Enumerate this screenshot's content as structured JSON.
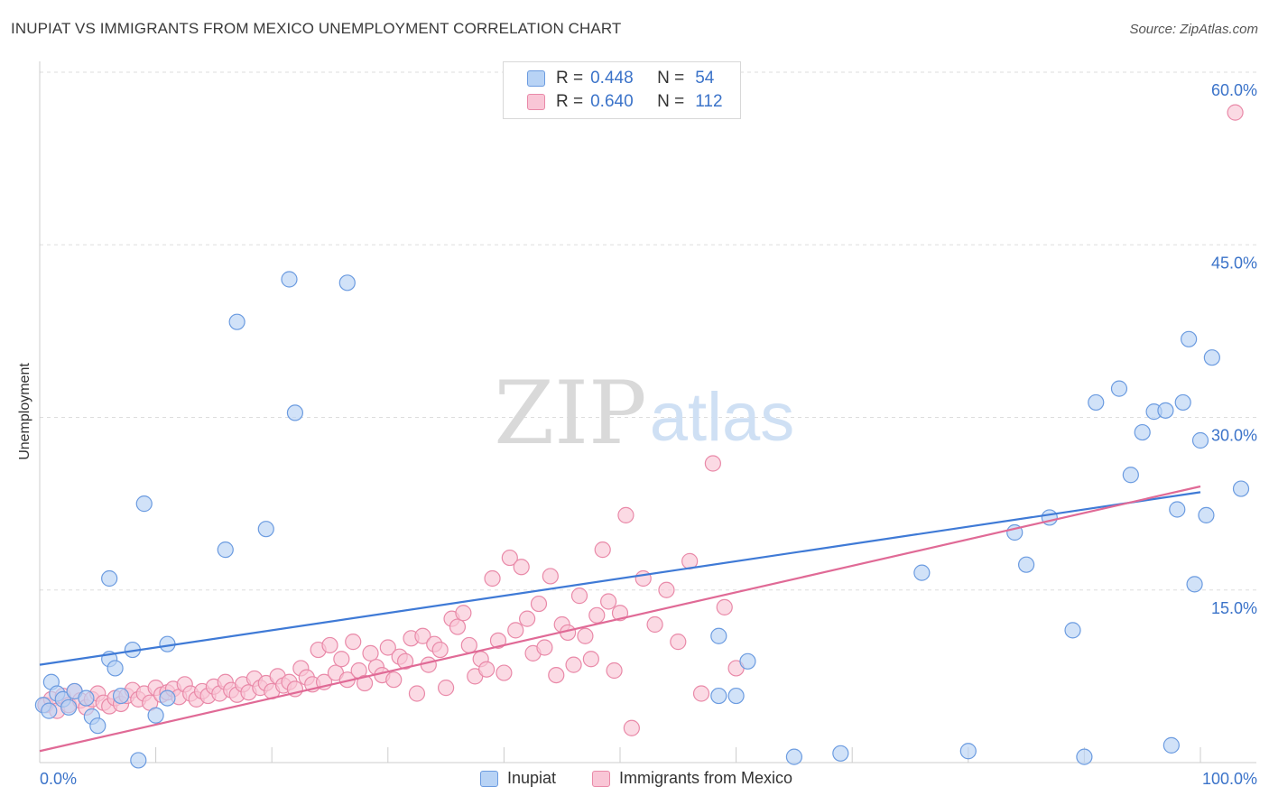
{
  "title": "INUPIAT VS IMMIGRANTS FROM MEXICO UNEMPLOYMENT CORRELATION CHART",
  "source": "Source: ZipAtlas.com",
  "watermark": {
    "zip": "ZIP",
    "atlas": "atlas"
  },
  "legend": {
    "r_label": "R =",
    "n_label": "N =",
    "rows": [
      {
        "series": "Inupiat",
        "r": "0.448",
        "n": "54",
        "fill": "#b8d3f5",
        "stroke": "#6b9be0"
      },
      {
        "series": "Immigrants from Mexico",
        "r": "0.640",
        "n": "112",
        "fill": "#f9c6d6",
        "stroke": "#e989a8"
      }
    ]
  },
  "bottom_legend": [
    "Inupiat",
    "Immigrants from Mexico"
  ],
  "chart_data": {
    "type": "scatter",
    "title": "INUPIAT VS IMMIGRANTS FROM MEXICO UNEMPLOYMENT CORRELATION CHART",
    "xlabel": "",
    "ylabel": "Unemployment",
    "xlim": [
      0,
      100
    ],
    "ylim": [
      0,
      60
    ],
    "x_tick_labels": [
      "0.0%",
      "100.0%"
    ],
    "y_tick_labels": [
      "15.0%",
      "30.0%",
      "45.0%",
      "60.0%"
    ],
    "y_ticks": [
      15,
      30,
      45,
      60
    ],
    "grid": true,
    "legend_position": "top-center",
    "colors": {
      "inupiat": "#3f7ad6",
      "mexico": "#e06a96",
      "axis_text": "#3b73c9"
    },
    "series": [
      {
        "name": "Inupiat",
        "trend": {
          "x": [
            0,
            100
          ],
          "y": [
            8.5,
            23.5
          ]
        },
        "points": [
          [
            0.3,
            5.0
          ],
          [
            0.8,
            4.5
          ],
          [
            1.0,
            7.0
          ],
          [
            1.5,
            6.0
          ],
          [
            2.0,
            5.5
          ],
          [
            2.5,
            4.8
          ],
          [
            3.0,
            6.2
          ],
          [
            4.0,
            5.6
          ],
          [
            4.5,
            4.0
          ],
          [
            5.0,
            3.2
          ],
          [
            6.0,
            9.0
          ],
          [
            6.5,
            8.2
          ],
          [
            6.0,
            16.0
          ],
          [
            7.0,
            5.8
          ],
          [
            8.0,
            9.8
          ],
          [
            8.5,
            0.2
          ],
          [
            9.0,
            22.5
          ],
          [
            10.0,
            4.1
          ],
          [
            11.0,
            5.6
          ],
          [
            11.0,
            10.3
          ],
          [
            16.0,
            18.5
          ],
          [
            17.0,
            38.3
          ],
          [
            19.5,
            20.3
          ],
          [
            21.5,
            42.0
          ],
          [
            22.0,
            30.4
          ],
          [
            26.5,
            41.7
          ],
          [
            58.5,
            11.0
          ],
          [
            58.5,
            5.8
          ],
          [
            60.0,
            5.8
          ],
          [
            61.0,
            8.8
          ],
          [
            65.0,
            0.5
          ],
          [
            69.0,
            0.8
          ],
          [
            76.0,
            16.5
          ],
          [
            80.0,
            1.0
          ],
          [
            84.0,
            20.0
          ],
          [
            85.0,
            17.2
          ],
          [
            87.0,
            21.3
          ],
          [
            89.0,
            11.5
          ],
          [
            90.0,
            0.5
          ],
          [
            91.0,
            31.3
          ],
          [
            93.0,
            32.5
          ],
          [
            94.0,
            25.0
          ],
          [
            95.0,
            28.7
          ],
          [
            96.0,
            30.5
          ],
          [
            97.0,
            30.6
          ],
          [
            97.5,
            1.5
          ],
          [
            98.0,
            22.0
          ],
          [
            98.5,
            31.3
          ],
          [
            99.0,
            36.8
          ],
          [
            99.5,
            15.5
          ],
          [
            100.0,
            28.0
          ],
          [
            100.5,
            21.5
          ],
          [
            101.0,
            35.2
          ],
          [
            103.5,
            23.8
          ]
        ]
      },
      {
        "name": "Immigrants from Mexico",
        "trend": {
          "x": [
            0,
            100
          ],
          "y": [
            1.0,
            24.0
          ]
        },
        "points": [
          [
            0.5,
            5.0
          ],
          [
            1.0,
            5.5
          ],
          [
            1.5,
            4.5
          ],
          [
            2.0,
            5.8
          ],
          [
            2.5,
            5.0
          ],
          [
            3.0,
            6.2
          ],
          [
            3.5,
            5.4
          ],
          [
            4.0,
            4.8
          ],
          [
            4.5,
            5.5
          ],
          [
            5.0,
            6.0
          ],
          [
            5.5,
            5.2
          ],
          [
            6.0,
            4.9
          ],
          [
            6.5,
            5.6
          ],
          [
            7.0,
            5.1
          ],
          [
            7.5,
            5.8
          ],
          [
            8.0,
            6.3
          ],
          [
            8.5,
            5.5
          ],
          [
            9.0,
            6.0
          ],
          [
            9.5,
            5.2
          ],
          [
            10.0,
            6.5
          ],
          [
            10.5,
            5.9
          ],
          [
            11.0,
            6.1
          ],
          [
            11.5,
            6.4
          ],
          [
            12.0,
            5.7
          ],
          [
            12.5,
            6.8
          ],
          [
            13.0,
            6.0
          ],
          [
            13.5,
            5.5
          ],
          [
            14.0,
            6.2
          ],
          [
            14.5,
            5.8
          ],
          [
            15.0,
            6.6
          ],
          [
            15.5,
            6.0
          ],
          [
            16.0,
            7.0
          ],
          [
            16.5,
            6.3
          ],
          [
            17.0,
            5.9
          ],
          [
            17.5,
            6.8
          ],
          [
            18.0,
            6.1
          ],
          [
            18.5,
            7.3
          ],
          [
            19.0,
            6.5
          ],
          [
            19.5,
            6.9
          ],
          [
            20.0,
            6.2
          ],
          [
            20.5,
            7.5
          ],
          [
            21.0,
            6.7
          ],
          [
            21.5,
            7.0
          ],
          [
            22.0,
            6.4
          ],
          [
            22.5,
            8.2
          ],
          [
            23.0,
            7.4
          ],
          [
            23.5,
            6.8
          ],
          [
            24.0,
            9.8
          ],
          [
            24.5,
            7.0
          ],
          [
            25.0,
            10.2
          ],
          [
            25.5,
            7.8
          ],
          [
            26.0,
            9.0
          ],
          [
            26.5,
            7.2
          ],
          [
            27.0,
            10.5
          ],
          [
            27.5,
            8.0
          ],
          [
            28.0,
            6.9
          ],
          [
            28.5,
            9.5
          ],
          [
            29.0,
            8.3
          ],
          [
            29.5,
            7.6
          ],
          [
            30.0,
            10.0
          ],
          [
            30.5,
            7.2
          ],
          [
            31.0,
            9.2
          ],
          [
            31.5,
            8.8
          ],
          [
            32.0,
            10.8
          ],
          [
            32.5,
            6.0
          ],
          [
            33.0,
            11.0
          ],
          [
            33.5,
            8.5
          ],
          [
            34.0,
            10.3
          ],
          [
            34.5,
            9.8
          ],
          [
            35.0,
            6.5
          ],
          [
            35.5,
            12.5
          ],
          [
            36.0,
            11.8
          ],
          [
            36.5,
            13.0
          ],
          [
            37.0,
            10.2
          ],
          [
            37.5,
            7.5
          ],
          [
            38.0,
            9.0
          ],
          [
            38.5,
            8.1
          ],
          [
            39.0,
            16.0
          ],
          [
            39.5,
            10.6
          ],
          [
            40.0,
            7.8
          ],
          [
            40.5,
            17.8
          ],
          [
            41.0,
            11.5
          ],
          [
            41.5,
            17.0
          ],
          [
            42.0,
            12.5
          ],
          [
            42.5,
            9.5
          ],
          [
            43.0,
            13.8
          ],
          [
            43.5,
            10.0
          ],
          [
            44.0,
            16.2
          ],
          [
            44.5,
            7.6
          ],
          [
            45.0,
            12.0
          ],
          [
            45.5,
            11.3
          ],
          [
            46.0,
            8.5
          ],
          [
            46.5,
            14.5
          ],
          [
            47.0,
            11.0
          ],
          [
            47.5,
            9.0
          ],
          [
            48.0,
            12.8
          ],
          [
            48.5,
            18.5
          ],
          [
            49.0,
            14.0
          ],
          [
            49.5,
            8.0
          ],
          [
            50.0,
            13.0
          ],
          [
            50.5,
            21.5
          ],
          [
            51.0,
            3.0
          ],
          [
            52.0,
            16.0
          ],
          [
            53.0,
            12.0
          ],
          [
            54.0,
            15.0
          ],
          [
            55.0,
            10.5
          ],
          [
            56.0,
            17.5
          ],
          [
            57.0,
            6.0
          ],
          [
            58.0,
            26.0
          ],
          [
            59.0,
            13.5
          ],
          [
            60.0,
            8.2
          ],
          [
            103.0,
            56.5
          ]
        ]
      }
    ]
  }
}
